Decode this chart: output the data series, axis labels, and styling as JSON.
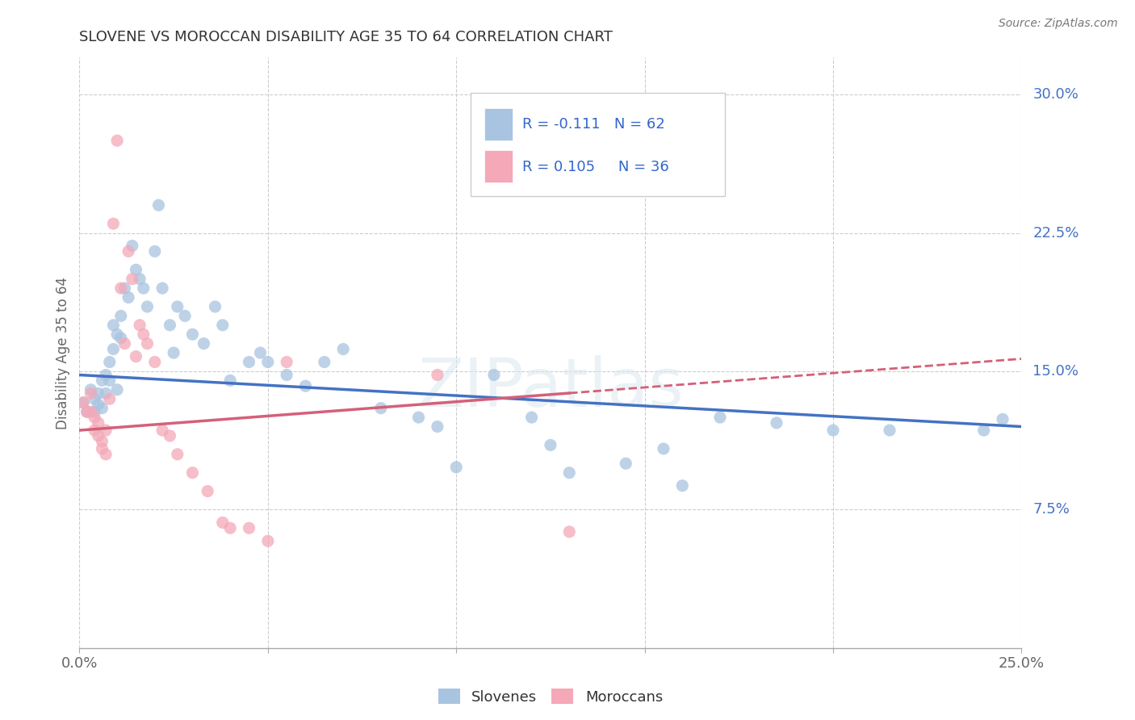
{
  "title": "SLOVENE VS MOROCCAN DISABILITY AGE 35 TO 64 CORRELATION CHART",
  "source": "Source: ZipAtlas.com",
  "ylabel": "Disability Age 35 to 64",
  "xlim": [
    0.0,
    0.25
  ],
  "ylim": [
    0.0,
    0.32
  ],
  "yticks": [
    0.075,
    0.15,
    0.225,
    0.3
  ],
  "ytick_labels": [
    "7.5%",
    "15.0%",
    "22.5%",
    "30.0%"
  ],
  "xticks": [
    0.0,
    0.05,
    0.1,
    0.15,
    0.2,
    0.25
  ],
  "xtick_labels": [
    "0.0%",
    "",
    "",
    "",
    "",
    "25.0%"
  ],
  "blue_R": -0.111,
  "blue_N": 62,
  "pink_R": 0.105,
  "pink_N": 36,
  "blue_color": "#a8c4e0",
  "pink_color": "#f4a8b8",
  "blue_line_color": "#4472c4",
  "pink_line_color": "#d4607a",
  "legend_R_color": "#3366cc",
  "background_color": "#ffffff",
  "grid_color": "#cccccc",
  "blue_intercept": 0.148,
  "blue_slope": -0.112,
  "pink_intercept": 0.118,
  "pink_slope": 0.155,
  "blue_x": [
    0.001,
    0.002,
    0.003,
    0.004,
    0.004,
    0.005,
    0.005,
    0.006,
    0.006,
    0.007,
    0.007,
    0.008,
    0.008,
    0.009,
    0.009,
    0.01,
    0.01,
    0.011,
    0.011,
    0.012,
    0.013,
    0.014,
    0.015,
    0.016,
    0.017,
    0.018,
    0.02,
    0.021,
    0.022,
    0.024,
    0.025,
    0.026,
    0.028,
    0.03,
    0.033,
    0.036,
    0.038,
    0.04,
    0.045,
    0.048,
    0.05,
    0.055,
    0.06,
    0.065,
    0.07,
    0.08,
    0.09,
    0.095,
    0.1,
    0.11,
    0.12,
    0.125,
    0.13,
    0.145,
    0.155,
    0.16,
    0.17,
    0.185,
    0.2,
    0.215,
    0.24,
    0.245
  ],
  "blue_y": [
    0.133,
    0.128,
    0.14,
    0.135,
    0.128,
    0.132,
    0.138,
    0.145,
    0.13,
    0.148,
    0.138,
    0.155,
    0.145,
    0.162,
    0.175,
    0.17,
    0.14,
    0.168,
    0.18,
    0.195,
    0.19,
    0.218,
    0.205,
    0.2,
    0.195,
    0.185,
    0.215,
    0.24,
    0.195,
    0.175,
    0.16,
    0.185,
    0.18,
    0.17,
    0.165,
    0.185,
    0.175,
    0.145,
    0.155,
    0.16,
    0.155,
    0.148,
    0.142,
    0.155,
    0.162,
    0.13,
    0.125,
    0.12,
    0.098,
    0.148,
    0.125,
    0.11,
    0.095,
    0.1,
    0.108,
    0.088,
    0.125,
    0.122,
    0.118,
    0.118,
    0.118,
    0.124
  ],
  "pink_x": [
    0.001,
    0.002,
    0.003,
    0.003,
    0.004,
    0.004,
    0.005,
    0.005,
    0.006,
    0.006,
    0.007,
    0.007,
    0.008,
    0.009,
    0.01,
    0.011,
    0.012,
    0.013,
    0.014,
    0.015,
    0.016,
    0.017,
    0.018,
    0.02,
    0.022,
    0.024,
    0.026,
    0.03,
    0.034,
    0.038,
    0.04,
    0.045,
    0.05,
    0.055,
    0.095,
    0.13
  ],
  "pink_y": [
    0.133,
    0.128,
    0.138,
    0.128,
    0.125,
    0.118,
    0.115,
    0.122,
    0.112,
    0.108,
    0.105,
    0.118,
    0.135,
    0.23,
    0.275,
    0.195,
    0.165,
    0.215,
    0.2,
    0.158,
    0.175,
    0.17,
    0.165,
    0.155,
    0.118,
    0.115,
    0.105,
    0.095,
    0.085,
    0.068,
    0.065,
    0.065,
    0.058,
    0.155,
    0.148,
    0.063
  ]
}
